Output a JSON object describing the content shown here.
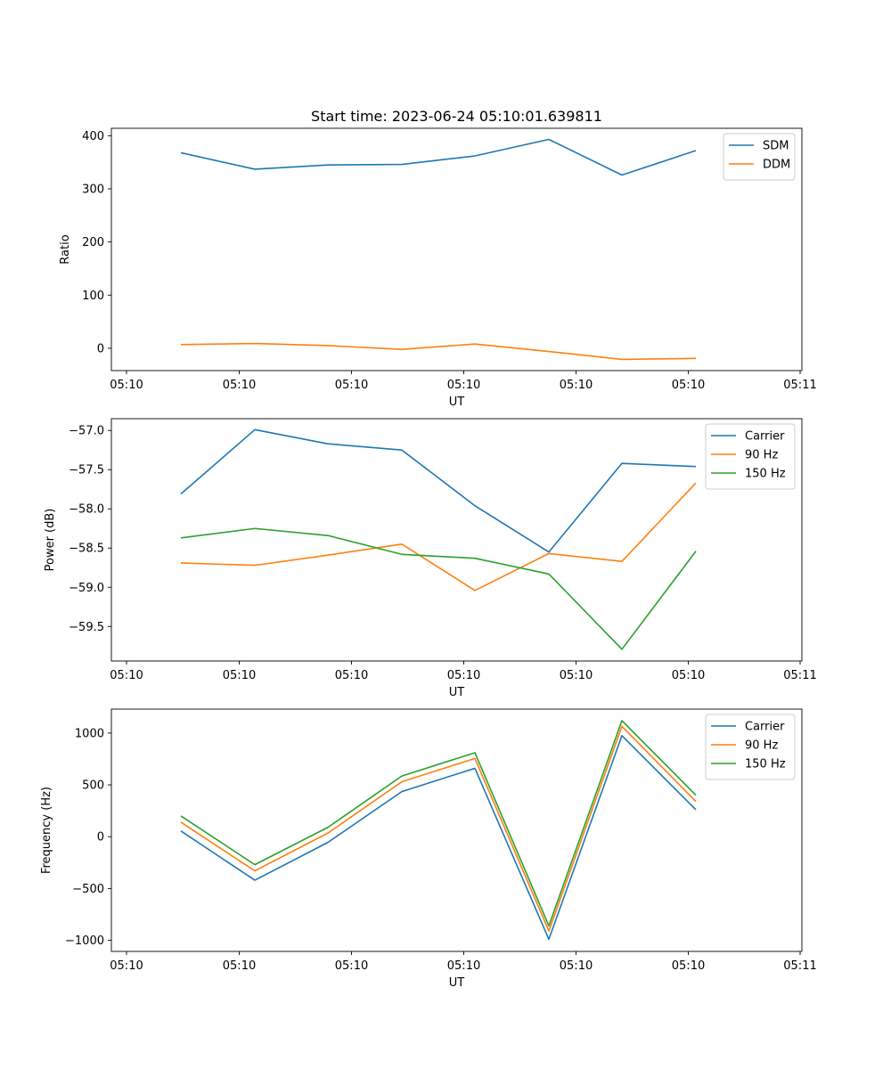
{
  "title": "Start time: 2023-06-24 05:10:01.639811",
  "colors": {
    "blue": "#1f77b4",
    "orange": "#ff7f0e",
    "green": "#2ca02c"
  },
  "chart_data": [
    {
      "type": "line",
      "title": "Start time: 2023-06-24 05:10:01.639811",
      "xlabel": "UT",
      "ylabel": "Ratio",
      "x_tick_labels": [
        "05:10",
        "05:10",
        "05:10",
        "05:10",
        "05:10",
        "05:10",
        "05:10"
      ],
      "y_ticks": [
        0,
        100,
        200,
        300,
        400
      ],
      "y_tick_labels": [
        "0",
        "100",
        "200",
        "300",
        "400"
      ],
      "ylim": [
        -42,
        414
      ],
      "legend": "top-right",
      "series": [
        {
          "name": "SDM",
          "color": "#1f77b4",
          "values": [
            368,
            337,
            345,
            346,
            362,
            393,
            326,
            372
          ]
        },
        {
          "name": "DDM",
          "color": "#ff7f0e",
          "values": [
            7,
            9,
            5,
            -2,
            8,
            -6,
            -21,
            -19
          ]
        }
      ]
    },
    {
      "type": "line",
      "xlabel": "UT",
      "ylabel": "Power (dB)",
      "x_tick_labels": [
        "05:10",
        "05:10",
        "05:10",
        "05:10",
        "05:10",
        "05:10",
        "05:10"
      ],
      "y_ticks": [
        -59.5,
        -59.0,
        -58.5,
        -58.0,
        -57.5,
        -57.0
      ],
      "y_tick_labels": [
        "−59.5",
        "−59.0",
        "−58.5",
        "−58.0",
        "−57.5",
        "−57.0"
      ],
      "ylim": [
        -59.94,
        -56.85
      ],
      "legend": "top-right",
      "series": [
        {
          "name": "Carrier",
          "color": "#1f77b4",
          "values": [
            -57.81,
            -56.99,
            -57.17,
            -57.25,
            -57.96,
            -58.55,
            -57.42,
            -57.46
          ]
        },
        {
          "name": "90 Hz",
          "color": "#ff7f0e",
          "values": [
            -58.69,
            -58.72,
            -58.59,
            -58.45,
            -59.04,
            -58.57,
            -58.67,
            -57.67
          ]
        },
        {
          "name": "150 Hz",
          "color": "#2ca02c",
          "values": [
            -58.37,
            -58.25,
            -58.34,
            -58.58,
            -58.63,
            -58.83,
            -59.79,
            -58.54
          ]
        }
      ]
    },
    {
      "type": "line",
      "xlabel": "UT",
      "ylabel": "Frequency (Hz)",
      "x_tick_labels": [
        "05:10",
        "05:10",
        "05:10",
        "05:10",
        "05:10",
        "05:10",
        "05:11"
      ],
      "y_ticks": [
        -1000,
        -500,
        0,
        500,
        1000
      ],
      "y_tick_labels": [
        "−1000",
        "−500",
        "0",
        "500",
        "1000"
      ],
      "ylim": [
        -1107,
        1231
      ],
      "legend": "top-right",
      "series": [
        {
          "name": "Carrier",
          "color": "#1f77b4",
          "values": [
            55,
            -420,
            -55,
            435,
            660,
            -990,
            975,
            260
          ]
        },
        {
          "name": "90 Hz",
          "color": "#ff7f0e",
          "values": [
            140,
            -330,
            35,
            530,
            755,
            -910,
            1065,
            340
          ]
        },
        {
          "name": "150 Hz",
          "color": "#2ca02c",
          "values": [
            200,
            -270,
            90,
            585,
            810,
            -860,
            1120,
            400
          ]
        }
      ]
    }
  ],
  "x_ticks_axis_top": [
    "05:10",
    "05:10",
    "05:10",
    "05:10",
    "05:10",
    "05:10",
    "05:11"
  ]
}
